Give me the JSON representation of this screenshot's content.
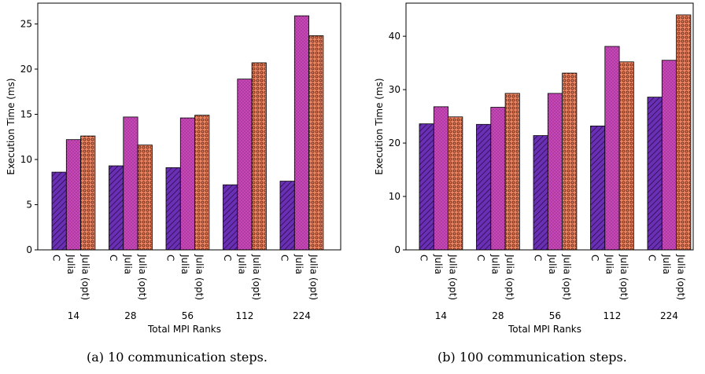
{
  "chart_data": [
    {
      "type": "bar",
      "groups": [
        "14",
        "28",
        "56",
        "112",
        "224"
      ],
      "bar_labels": [
        "C",
        "Julia",
        "Julia (opt)"
      ],
      "series": [
        {
          "values": [
            8.6,
            9.3,
            9.1,
            7.2,
            7.6
          ],
          "color": "#6a2fb5"
        },
        {
          "values": [
            12.2,
            14.7,
            14.6,
            18.9,
            25.9
          ],
          "color": "#c847b8"
        },
        {
          "values": [
            12.6,
            11.6,
            14.9,
            20.7,
            23.7
          ],
          "color": "#ee8562"
        }
      ],
      "xlabel": "Total MPI Ranks",
      "ylabel": "Execution Time (ms)",
      "ylim": [
        0,
        27.3
      ],
      "yticks": [
        0,
        5,
        10,
        15,
        20,
        25
      ],
      "caption": "(a)  10 communication steps."
    },
    {
      "type": "bar",
      "groups": [
        "14",
        "28",
        "56",
        "112",
        "224"
      ],
      "bar_labels": [
        "C",
        "Julia",
        "Julia (opt)"
      ],
      "series": [
        {
          "values": [
            23.6,
            23.5,
            21.4,
            23.2,
            28.6
          ],
          "color": "#6a2fb5"
        },
        {
          "values": [
            26.8,
            26.7,
            29.3,
            38.1,
            35.5
          ],
          "color": "#c847b8"
        },
        {
          "values": [
            24.9,
            29.3,
            33.1,
            35.2,
            44.0
          ],
          "color": "#ee8562"
        }
      ],
      "xlabel": "Total MPI Ranks",
      "ylabel": "Execution Time (ms)",
      "ylim": [
        0,
        46.2
      ],
      "yticks": [
        0,
        10,
        20,
        30,
        40
      ],
      "caption": "(b)  100 communication steps."
    }
  ]
}
